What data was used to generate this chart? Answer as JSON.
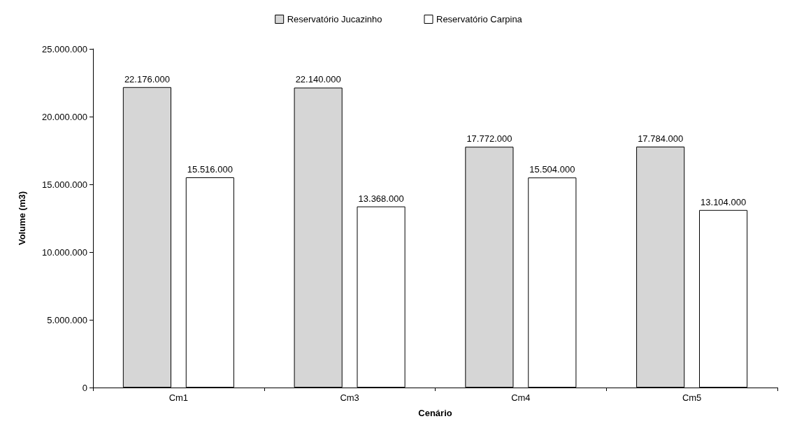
{
  "chart_data": {
    "type": "bar",
    "xlabel": "Cenário",
    "ylabel": "Volume (m3)",
    "categories": [
      "Cm1",
      "Cm3",
      "Cm4",
      "Cm5"
    ],
    "series": [
      {
        "name": "Reservatório Jucazinho",
        "color": "#d6d6d6",
        "values": [
          22176000,
          22140000,
          17772000,
          17784000
        ],
        "value_labels": [
          "22.176.000",
          "22.140.000",
          "17.772.000",
          "17.784.000"
        ]
      },
      {
        "name": "Reservatório Carpina",
        "color": "#ffffff",
        "values": [
          15516000,
          13368000,
          15504000,
          13104000
        ],
        "value_labels": [
          "15.516.000",
          "13.368.000",
          "15.504.000",
          "13.104.000"
        ]
      }
    ],
    "ylim": [
      0,
      25000000
    ],
    "yticks": [
      0,
      {
        "value": 5000000,
        "label": "5.000.000"
      },
      {
        "value": 10000000,
        "label": "10.000.000"
      },
      {
        "value": 15000000,
        "label": "15.000.000"
      },
      {
        "value": 20000000,
        "label": "20.000.000"
      },
      {
        "value": 25000000,
        "label": "25.000.000"
      }
    ],
    "grid": false,
    "legend": "top"
  }
}
